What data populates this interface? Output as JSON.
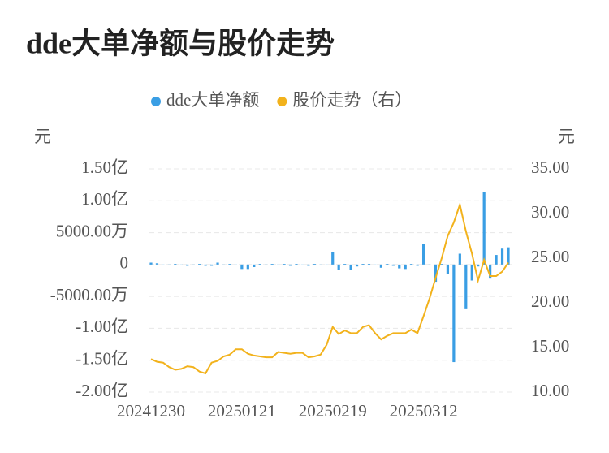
{
  "chart_data": {
    "type": "combo",
    "title": "dde大单净额与股价走势",
    "y_unit": "元",
    "y2_unit": "元",
    "categories": [
      "20241230",
      null,
      null,
      null,
      null,
      null,
      null,
      null,
      null,
      null,
      null,
      null,
      null,
      null,
      null,
      "20250121",
      null,
      null,
      null,
      null,
      null,
      null,
      null,
      null,
      null,
      null,
      null,
      null,
      null,
      null,
      "20250219",
      null,
      null,
      null,
      null,
      null,
      null,
      null,
      null,
      null,
      null,
      null,
      null,
      null,
      null,
      "20250312",
      null,
      null,
      null,
      null,
      null,
      null,
      null,
      null,
      null,
      null,
      null,
      null,
      null,
      null
    ],
    "series": [
      {
        "name": "dde大单净额",
        "type": "bar",
        "color": "#3a9ee4",
        "axis": "y",
        "values": [
          3000000,
          2000000,
          -1000000,
          -1000000,
          1000000,
          -1000000,
          -2000000,
          -1000000,
          1000000,
          -2000000,
          -2000000,
          3000000,
          -1000000,
          1000000,
          -1000000,
          -7000000,
          -7000000,
          -4000000,
          1000000,
          -1000000,
          1000000,
          -1000000,
          1000000,
          -2000000,
          1000000,
          -1000000,
          -2000000,
          1000000,
          -1000000,
          -1000000,
          19000000,
          -9000000,
          1000000,
          -8000000,
          -3000000,
          1000000,
          1000000,
          -1000000,
          -5000000,
          1000000,
          -2000000,
          -6000000,
          -7000000,
          1000000,
          -2000000,
          32000000,
          -1000000,
          -27000000,
          1000000,
          -15000000,
          -153000000,
          17000000,
          -70000000,
          -25000000,
          -3000000,
          114000000,
          -22000000,
          15000000,
          25000000,
          27000000
        ]
      },
      {
        "name": "股价走势（右）",
        "type": "line",
        "color": "#f2b21c",
        "axis": "y2",
        "values": [
          13.7,
          13.4,
          13.3,
          12.8,
          12.5,
          12.6,
          12.9,
          12.8,
          12.3,
          12.1,
          13.3,
          13.5,
          14.0,
          14.2,
          14.8,
          14.8,
          14.3,
          14.1,
          14.0,
          13.9,
          13.9,
          14.5,
          14.4,
          14.3,
          14.4,
          14.4,
          13.9,
          14.0,
          14.2,
          15.3,
          17.3,
          16.5,
          16.9,
          16.6,
          16.6,
          17.3,
          17.5,
          16.6,
          15.9,
          16.3,
          16.6,
          16.6,
          16.6,
          17.0,
          16.6,
          18.5,
          20.5,
          22.8,
          25.0,
          27.5,
          29.0,
          31.0,
          28.0,
          25.5,
          22.5,
          24.8,
          23.0,
          23.0,
          23.5,
          24.5
        ]
      }
    ],
    "ylim": [
      -200000000,
      150000000
    ],
    "yticks": [
      {
        "value": -200000000,
        "label": "-2.00亿"
      },
      {
        "value": -150000000,
        "label": "-1.50亿"
      },
      {
        "value": -100000000,
        "label": "-1.00亿"
      },
      {
        "value": -50000000,
        "label": "-5000.00万"
      },
      0,
      {
        "value": 50000000,
        "label": "5000.00万"
      },
      {
        "value": 100000000,
        "label": "1.00亿"
      },
      {
        "value": 150000000,
        "label": "1.50亿"
      }
    ],
    "y2lim": [
      10,
      35
    ],
    "y2ticks": [
      {
        "value": 10,
        "label": "10.00"
      },
      {
        "value": 15,
        "label": "15.00"
      },
      {
        "value": 20,
        "label": "20.00"
      },
      {
        "value": 25,
        "label": "25.00"
      },
      {
        "value": 30,
        "label": "30.00"
      },
      {
        "value": 35,
        "label": "35.00"
      }
    ],
    "grid": true,
    "legend": "top"
  }
}
